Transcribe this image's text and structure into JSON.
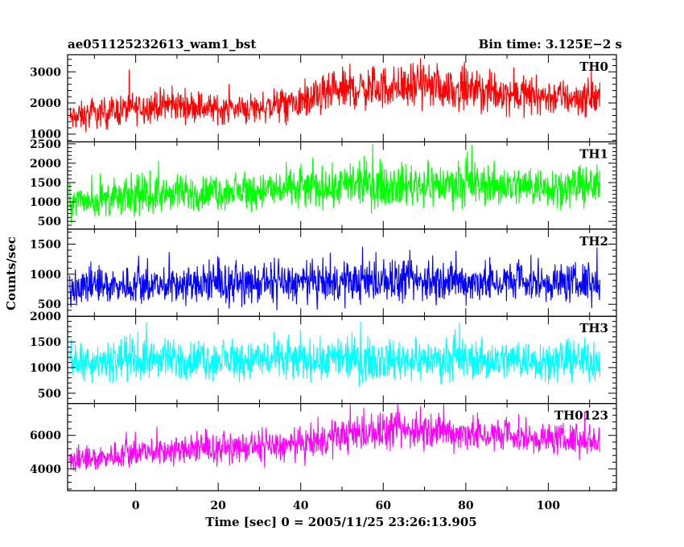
{
  "chart_data": {
    "type": "line",
    "title_left": "ae051125232613_wam1_bst",
    "title_right": "Bin time: 3.125E−2 s",
    "xlabel": "Time [sec] 0 = 2005/11/25 23:26:13.905",
    "ylabel": "Counts/sec",
    "xlim": [
      -16.5,
      116.5
    ],
    "data_xrange": [
      -16,
      112.5
    ],
    "xticks": [
      0,
      20,
      40,
      60,
      80,
      100
    ],
    "xtick_labels": [
      "0",
      "20",
      "40",
      "60",
      "80",
      "100"
    ],
    "grid": false,
    "panels": [
      {
        "name": "TH0",
        "color": "#ff0000",
        "ylim": [
          750,
          3550
        ],
        "yticks": [
          1000,
          2000,
          3000
        ],
        "ytick_labels": [
          "1000",
          "2000",
          "3000"
        ],
        "envelope": {
          "x": [
            -16,
            0,
            10,
            20,
            30,
            40,
            50,
            60,
            70,
            80,
            90,
            100,
            112
          ],
          "mean": [
            1500,
            1850,
            1950,
            1800,
            1850,
            2000,
            2400,
            2500,
            2550,
            2400,
            2300,
            2200,
            2150
          ],
          "spread": [
            500,
            550,
            550,
            500,
            550,
            600,
            700,
            750,
            750,
            700,
            650,
            650,
            600
          ]
        }
      },
      {
        "name": "TH1",
        "color": "#00ff00",
        "ylim": [
          300,
          2550
        ],
        "yticks": [
          500,
          1000,
          1500,
          2000,
          2500
        ],
        "ytick_labels": [
          "500",
          "1000",
          "1500",
          "2000",
          "2500"
        ],
        "envelope": {
          "x": [
            -16,
            0,
            20,
            40,
            60,
            80,
            100,
            112
          ],
          "mean": [
            1000,
            1150,
            1250,
            1350,
            1450,
            1450,
            1400,
            1400
          ],
          "spread": [
            450,
            500,
            500,
            550,
            600,
            600,
            550,
            550
          ]
        }
      },
      {
        "name": "TH2",
        "color": "#0000ff",
        "ylim": [
          300,
          1750
        ],
        "yticks": [
          500,
          1000,
          1500
        ],
        "ytick_labels": [
          "500",
          "1000",
          "1500"
        ],
        "envelope": {
          "x": [
            -16,
            0,
            20,
            40,
            60,
            80,
            100,
            112
          ],
          "mean": [
            800,
            820,
            830,
            850,
            880,
            870,
            860,
            860
          ],
          "spread": [
            330,
            330,
            340,
            350,
            360,
            350,
            350,
            350
          ]
        }
      },
      {
        "name": "TH3",
        "color": "#00ffff",
        "ylim": [
          300,
          2000
        ],
        "yticks": [
          500,
          1000,
          1500,
          2000
        ],
        "ytick_labels": [
          "500",
          "1000",
          "1500",
          "2000"
        ],
        "envelope": {
          "x": [
            -16,
            0,
            20,
            40,
            60,
            80,
            100,
            112
          ],
          "mean": [
            1150,
            1150,
            1150,
            1150,
            1150,
            1150,
            1150,
            1150
          ],
          "spread": [
            420,
            420,
            420,
            420,
            420,
            420,
            420,
            420
          ]
        }
      },
      {
        "name": "TH0123",
        "color": "#ff00ff",
        "ylim": [
          2700,
          7900
        ],
        "yticks": [
          4000,
          6000
        ],
        "ytick_labels": [
          "4000",
          "6000"
        ],
        "envelope": {
          "x": [
            -16,
            0,
            20,
            40,
            50,
            60,
            70,
            80,
            100,
            112
          ],
          "mean": [
            4400,
            5000,
            5200,
            5400,
            6000,
            6200,
            6300,
            6100,
            5800,
            5700
          ],
          "spread": [
            800,
            900,
            900,
            1000,
            1100,
            1150,
            1150,
            1100,
            1000,
            1000
          ]
        }
      }
    ]
  }
}
